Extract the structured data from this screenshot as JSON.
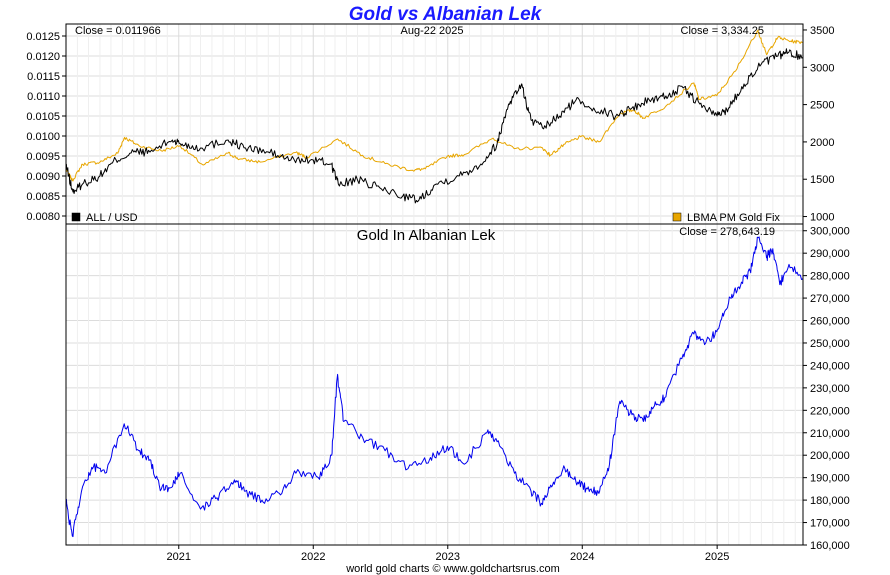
{
  "title": "Gold vs Albanian Lek",
  "footer": "world gold charts © www.goldchartsrus.com",
  "colors": {
    "title": "#1a1aff",
    "all_usd": "#000000",
    "gold_usd": "#e8a600",
    "gold_all": "#0000ee",
    "grid": "#dcdcdc"
  },
  "chart_data": [
    {
      "type": "line",
      "date_label": "Aug-22  2025",
      "close_left": "Close = 0.011966",
      "close_right": "Close = 3,334.25",
      "y_left": {
        "ticks": [
          "0.0080",
          "0.0085",
          "0.0090",
          "0.0095",
          "0.0100",
          "0.0105",
          "0.0110",
          "0.0115",
          "0.0120",
          "0.0125"
        ],
        "range": [
          0.0078,
          0.0128
        ]
      },
      "y_right": {
        "ticks": [
          "1000",
          "1500",
          "2000",
          "2500",
          "3000",
          "3500"
        ],
        "range": [
          900,
          3580
        ]
      },
      "x_range": [
        "2020-03-01",
        "2025-08-22"
      ],
      "legend": [
        {
          "name": "ALL / USD",
          "color": "#000000",
          "placement": "bottom-left"
        },
        {
          "name": "LBMA PM Gold Fix",
          "color": "#e8a600",
          "placement": "bottom-right"
        }
      ],
      "series": [
        {
          "name": "ALL / USD",
          "axis": "left",
          "points": [
            [
              "2020-03-01",
              0.0093
            ],
            [
              "2020-03-20",
              0.0086
            ],
            [
              "2020-04-15",
              0.0088
            ],
            [
              "2020-06-01",
              0.009
            ],
            [
              "2020-07-15",
              0.0094
            ],
            [
              "2020-09-01",
              0.0096
            ],
            [
              "2020-10-15",
              0.0096
            ],
            [
              "2020-12-15",
              0.0099
            ],
            [
              "2021-01-10",
              0.0098
            ],
            [
              "2021-03-01",
              0.0097
            ],
            [
              "2021-05-15",
              0.0099
            ],
            [
              "2021-07-01",
              0.0097
            ],
            [
              "2021-09-01",
              0.0096
            ],
            [
              "2021-11-01",
              0.0094
            ],
            [
              "2022-01-01",
              0.0094
            ],
            [
              "2022-02-20",
              0.0093
            ],
            [
              "2022-03-10",
              0.0088
            ],
            [
              "2022-05-01",
              0.0089
            ],
            [
              "2022-07-01",
              0.0087
            ],
            [
              "2022-09-01",
              0.0085
            ],
            [
              "2022-10-15",
              0.0084
            ],
            [
              "2022-12-01",
              0.0088
            ],
            [
              "2023-02-01",
              0.009
            ],
            [
              "2023-04-01",
              0.0093
            ],
            [
              "2023-05-15",
              0.0098
            ],
            [
              "2023-06-15",
              0.0108
            ],
            [
              "2023-07-20",
              0.0113
            ],
            [
              "2023-08-15",
              0.0104
            ],
            [
              "2023-09-15",
              0.0102
            ],
            [
              "2023-11-01",
              0.0105
            ],
            [
              "2023-12-15",
              0.0109
            ],
            [
              "2024-02-01",
              0.0107
            ],
            [
              "2024-04-01",
              0.0105
            ],
            [
              "2024-05-15",
              0.0107
            ],
            [
              "2024-07-01",
              0.0109
            ],
            [
              "2024-08-15",
              0.011
            ],
            [
              "2024-10-01",
              0.0112
            ],
            [
              "2024-11-15",
              0.0108
            ],
            [
              "2025-01-01",
              0.0105
            ],
            [
              "2025-02-01",
              0.0107
            ],
            [
              "2025-03-15",
              0.0113
            ],
            [
              "2025-05-01",
              0.0118
            ],
            [
              "2025-06-15",
              0.012
            ],
            [
              "2025-07-15",
              0.0121
            ],
            [
              "2025-08-22",
              0.011966
            ]
          ]
        },
        {
          "name": "LBMA PM Gold Fix",
          "axis": "right",
          "points": [
            [
              "2020-03-01",
              1640
            ],
            [
              "2020-03-19",
              1480
            ],
            [
              "2020-04-15",
              1700
            ],
            [
              "2020-06-01",
              1730
            ],
            [
              "2020-07-20",
              1850
            ],
            [
              "2020-08-07",
              2060
            ],
            [
              "2020-09-15",
              1950
            ],
            [
              "2020-11-15",
              1880
            ],
            [
              "2021-01-05",
              1950
            ],
            [
              "2021-03-08",
              1690
            ],
            [
              "2021-05-15",
              1850
            ],
            [
              "2021-06-15",
              1770
            ],
            [
              "2021-08-10",
              1730
            ],
            [
              "2021-11-15",
              1860
            ],
            [
              "2021-12-15",
              1790
            ],
            [
              "2022-03-08",
              2040
            ],
            [
              "2022-05-15",
              1820
            ],
            [
              "2022-07-15",
              1710
            ],
            [
              "2022-09-28",
              1620
            ],
            [
              "2022-11-01",
              1640
            ],
            [
              "2022-12-31",
              1810
            ],
            [
              "2023-02-15",
              1830
            ],
            [
              "2023-05-04",
              2050
            ],
            [
              "2023-06-30",
              1910
            ],
            [
              "2023-09-15",
              1920
            ],
            [
              "2023-10-06",
              1820
            ],
            [
              "2023-11-15",
              1970
            ],
            [
              "2023-12-28",
              2070
            ],
            [
              "2024-02-15",
              2000
            ],
            [
              "2024-04-12",
              2380
            ],
            [
              "2024-05-20",
              2430
            ],
            [
              "2024-06-15",
              2320
            ],
            [
              "2024-08-15",
              2480
            ],
            [
              "2024-10-30",
              2790
            ],
            [
              "2024-11-14",
              2570
            ],
            [
              "2024-12-31",
              2620
            ],
            [
              "2025-02-20",
              2950
            ],
            [
              "2025-04-22",
              3500
            ],
            [
              "2025-05-15",
              3170
            ],
            [
              "2025-06-15",
              3400
            ],
            [
              "2025-07-20",
              3350
            ],
            [
              "2025-08-22",
              3334.25
            ]
          ]
        }
      ]
    },
    {
      "type": "line",
      "title": "Gold In Albanian Lek",
      "close_right": "Close = 278,643.19",
      "y_right": {
        "ticks": [
          "160,000",
          "170,000",
          "180,000",
          "190,000",
          "200,000",
          "210,000",
          "220,000",
          "230,000",
          "240,000",
          "250,000",
          "260,000",
          "270,000",
          "280,000",
          "290,000",
          "300,000"
        ],
        "range": [
          160000,
          303000
        ]
      },
      "x_range": [
        "2020-03-01",
        "2025-08-22"
      ],
      "x_ticks": [
        "2021",
        "2022",
        "2023",
        "2024",
        "2025"
      ],
      "series": [
        {
          "name": "Gold In Albanian Lek",
          "points": [
            [
              "2020-03-01",
              180000
            ],
            [
              "2020-03-18",
              164000
            ],
            [
              "2020-04-15",
              186000
            ],
            [
              "2020-05-15",
              195000
            ],
            [
              "2020-06-15",
              192000
            ],
            [
              "2020-08-06",
              214000
            ],
            [
              "2020-09-15",
              202000
            ],
            [
              "2020-10-15",
              198000
            ],
            [
              "2020-11-15",
              185000
            ],
            [
              "2020-12-15",
              186000
            ],
            [
              "2021-01-05",
              192000
            ],
            [
              "2021-03-01",
              176000
            ],
            [
              "2021-04-15",
              181000
            ],
            [
              "2021-06-01",
              189000
            ],
            [
              "2021-07-01",
              184000
            ],
            [
              "2021-08-15",
              180000
            ],
            [
              "2021-10-01",
              183000
            ],
            [
              "2021-11-15",
              192000
            ],
            [
              "2022-01-15",
              190000
            ],
            [
              "2022-02-20",
              200000
            ],
            [
              "2022-03-08",
              236000
            ],
            [
              "2022-03-25",
              215000
            ],
            [
              "2022-05-15",
              208000
            ],
            [
              "2022-07-15",
              202000
            ],
            [
              "2022-09-15",
              194000
            ],
            [
              "2022-11-15",
              199000
            ],
            [
              "2022-12-31",
              204000
            ],
            [
              "2023-02-15",
              196000
            ],
            [
              "2023-04-15",
              210000
            ],
            [
              "2023-05-15",
              206000
            ],
            [
              "2023-07-01",
              192000
            ],
            [
              "2023-08-15",
              184000
            ],
            [
              "2023-09-15",
              178000
            ],
            [
              "2023-10-15",
              188000
            ],
            [
              "2023-11-15",
              194000
            ],
            [
              "2023-12-15",
              188000
            ],
            [
              "2024-01-15",
              185000
            ],
            [
              "2024-02-15",
              183000
            ],
            [
              "2024-03-15",
              196000
            ],
            [
              "2024-04-12",
              224000
            ],
            [
              "2024-05-15",
              218000
            ],
            [
              "2024-06-15",
              215000
            ],
            [
              "2024-07-15",
              222000
            ],
            [
              "2024-08-15",
              226000
            ],
            [
              "2024-10-01",
              245000
            ],
            [
              "2024-10-30",
              254000
            ],
            [
              "2024-12-01",
              250000
            ],
            [
              "2024-12-31",
              255000
            ],
            [
              "2025-02-01",
              268000
            ],
            [
              "2025-03-01",
              275000
            ],
            [
              "2025-04-01",
              282000
            ],
            [
              "2025-04-22",
              297000
            ],
            [
              "2025-05-15",
              288000
            ],
            [
              "2025-06-01",
              292000
            ],
            [
              "2025-06-20",
              276000
            ],
            [
              "2025-07-15",
              285000
            ],
            [
              "2025-08-22",
              278643.19
            ]
          ]
        }
      ]
    }
  ]
}
